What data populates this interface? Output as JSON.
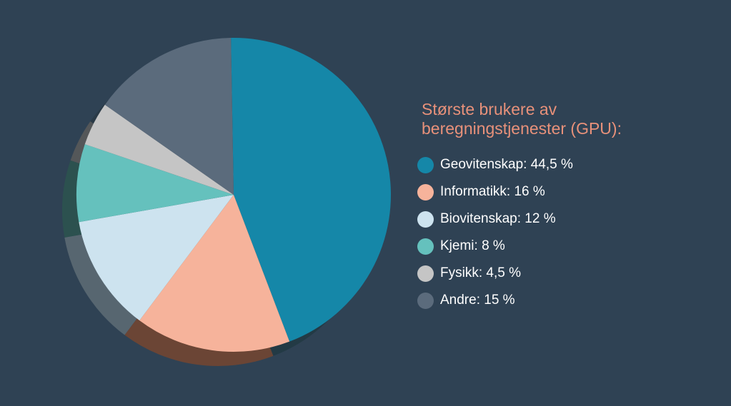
{
  "colors": {
    "background": "#2f4254",
    "title": "#e8917a",
    "legend_text": "#ffffff"
  },
  "chart_data": {
    "type": "pie",
    "title": "Største brukere av beregningstjenester (GPU):",
    "title_lines": [
      "Største brukere av",
      "beregningstjenester (GPU):"
    ],
    "start_angle_deg": -1,
    "direction": "clockwise",
    "style": "3d-tilted",
    "slices": [
      {
        "label": "Geovitenskap",
        "value": 44.5,
        "legend_text": "Geovitenskap: 44,5 %",
        "color": "#1587a8",
        "shade": "#233a45"
      },
      {
        "label": "Informatikk",
        "value": 16,
        "legend_text": "Informatikk: 16 %",
        "color": "#f6b39b",
        "shade": "#6b4535"
      },
      {
        "label": "Biovitenskap",
        "value": 12,
        "legend_text": "Biovitenskap: 12 %",
        "color": "#cde3ef",
        "shade": "#576670"
      },
      {
        "label": "Kjemi",
        "value": 8,
        "legend_text": "Kjemi: 8 %",
        "color": "#65c1bd",
        "shade": "#2c514f"
      },
      {
        "label": "Fysikk",
        "value": 4.5,
        "legend_text": "Fysikk: 4,5 %",
        "color": "#c5c5c5",
        "shade": "#545759"
      },
      {
        "label": "Andre",
        "value": 15,
        "legend_text": "Andre: 15 %",
        "color": "#5b6b7c",
        "shade": "#2a3a47"
      }
    ]
  }
}
